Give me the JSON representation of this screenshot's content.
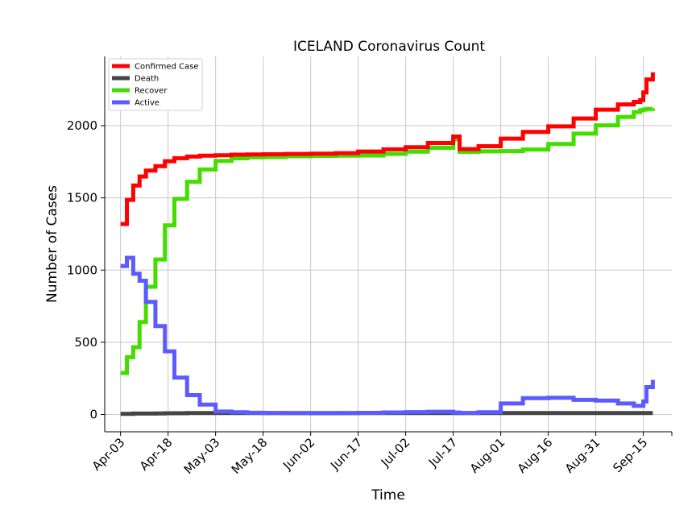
{
  "chart_data": {
    "type": "line",
    "title": "ICELAND Coronavirus Count",
    "xlabel": "Time",
    "ylabel": "Number of Cases",
    "x_tick_labels": [
      "Apr-03",
      "Apr-18",
      "May-03",
      "May-18",
      "Jun-02",
      "Jun-17",
      "Jul-02",
      "Jul-17",
      "Aug-01",
      "Aug-16",
      "Aug-31",
      "Sep-15"
    ],
    "y_tick_labels": [
      "0",
      "500",
      "1000",
      "1500",
      "2000"
    ],
    "ylim": [
      -120,
      2480
    ],
    "xlim": [
      "2020-03-29",
      "2020-09-24"
    ],
    "grid": true,
    "legend_position": "top-left",
    "colors": {
      "confirmed": "#ff0000",
      "death": "#444444",
      "recover": "#44dd00",
      "active": "#5b5bff"
    },
    "x": [
      "2020-04-03",
      "2020-04-05",
      "2020-04-07",
      "2020-04-09",
      "2020-04-11",
      "2020-04-14",
      "2020-04-17",
      "2020-04-20",
      "2020-04-24",
      "2020-04-28",
      "2020-05-03",
      "2020-05-08",
      "2020-05-13",
      "2020-05-18",
      "2020-05-25",
      "2020-06-02",
      "2020-06-10",
      "2020-06-17",
      "2020-06-25",
      "2020-07-02",
      "2020-07-09",
      "2020-07-17",
      "2020-07-19",
      "2020-07-25",
      "2020-08-01",
      "2020-08-08",
      "2020-08-16",
      "2020-08-24",
      "2020-08-31",
      "2020-09-07",
      "2020-09-12",
      "2020-09-14",
      "2020-09-15",
      "2020-09-16",
      "2020-09-18"
    ],
    "series": [
      {
        "name": "Confirmed Case",
        "values": [
          1319,
          1486,
          1586,
          1648,
          1689,
          1720,
          1754,
          1775,
          1786,
          1792,
          1795,
          1799,
          1801,
          1802,
          1804,
          1806,
          1810,
          1821,
          1836,
          1851,
          1880,
          1925,
          1838,
          1858,
          1910,
          1957,
          1995,
          2050,
          2111,
          2147,
          2165,
          2177,
          2230,
          2320,
          2370
        ]
      },
      {
        "name": "Death",
        "values": [
          4,
          4,
          6,
          6,
          6,
          7,
          8,
          8,
          10,
          10,
          10,
          10,
          10,
          10,
          10,
          10,
          10,
          10,
          10,
          10,
          10,
          10,
          10,
          10,
          10,
          10,
          10,
          10,
          10,
          10,
          10,
          10,
          10,
          10,
          10
        ]
      },
      {
        "name": "Recover",
        "values": [
          287,
          397,
          466,
          640,
          884,
          1073,
          1310,
          1493,
          1612,
          1697,
          1756,
          1774,
          1781,
          1783,
          1788,
          1791,
          1792,
          1794,
          1805,
          1820,
          1847,
          1906,
          1818,
          1822,
          1824,
          1835,
          1873,
          1945,
          2002,
          2061,
          2095,
          2107,
          2112,
          2116,
          2120
        ]
      },
      {
        "name": "Active",
        "values": [
          1028,
          1085,
          974,
          926,
          780,
          612,
          437,
          255,
          134,
          68,
          20,
          15,
          12,
          10,
          9,
          8,
          9,
          11,
          14,
          16,
          19,
          13,
          10,
          15,
          76,
          113,
          116,
          101,
          96,
          76,
          60,
          60,
          90,
          190,
          240
        ]
      }
    ]
  }
}
